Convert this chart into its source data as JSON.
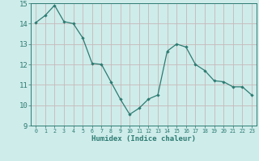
{
  "x": [
    0,
    1,
    2,
    3,
    4,
    5,
    6,
    7,
    8,
    9,
    10,
    11,
    12,
    13,
    14,
    15,
    16,
    17,
    18,
    19,
    20,
    21,
    22,
    23
  ],
  "y": [
    14.05,
    14.4,
    14.9,
    14.1,
    14.0,
    13.3,
    12.05,
    12.0,
    11.15,
    10.3,
    9.55,
    9.85,
    10.3,
    10.5,
    12.65,
    13.0,
    12.85,
    12.0,
    11.7,
    11.2,
    11.15,
    10.9,
    10.9,
    10.5
  ],
  "xlim": [
    -0.5,
    23.5
  ],
  "ylim": [
    9,
    15
  ],
  "yticks": [
    9,
    10,
    11,
    12,
    13,
    14,
    15
  ],
  "xticks": [
    0,
    1,
    2,
    3,
    4,
    5,
    6,
    7,
    8,
    9,
    10,
    11,
    12,
    13,
    14,
    15,
    16,
    17,
    18,
    19,
    20,
    21,
    22,
    23
  ],
  "xlabel": "Humidex (Indice chaleur)",
  "line_color": "#2d7b72",
  "marker": "D",
  "marker_size": 2.2,
  "bg_color": "#ceecea",
  "grid_color": "#c8b8b8",
  "tick_color": "#2d7b72",
  "label_color": "#2d7b72",
  "spine_color": "#2d7b72"
}
